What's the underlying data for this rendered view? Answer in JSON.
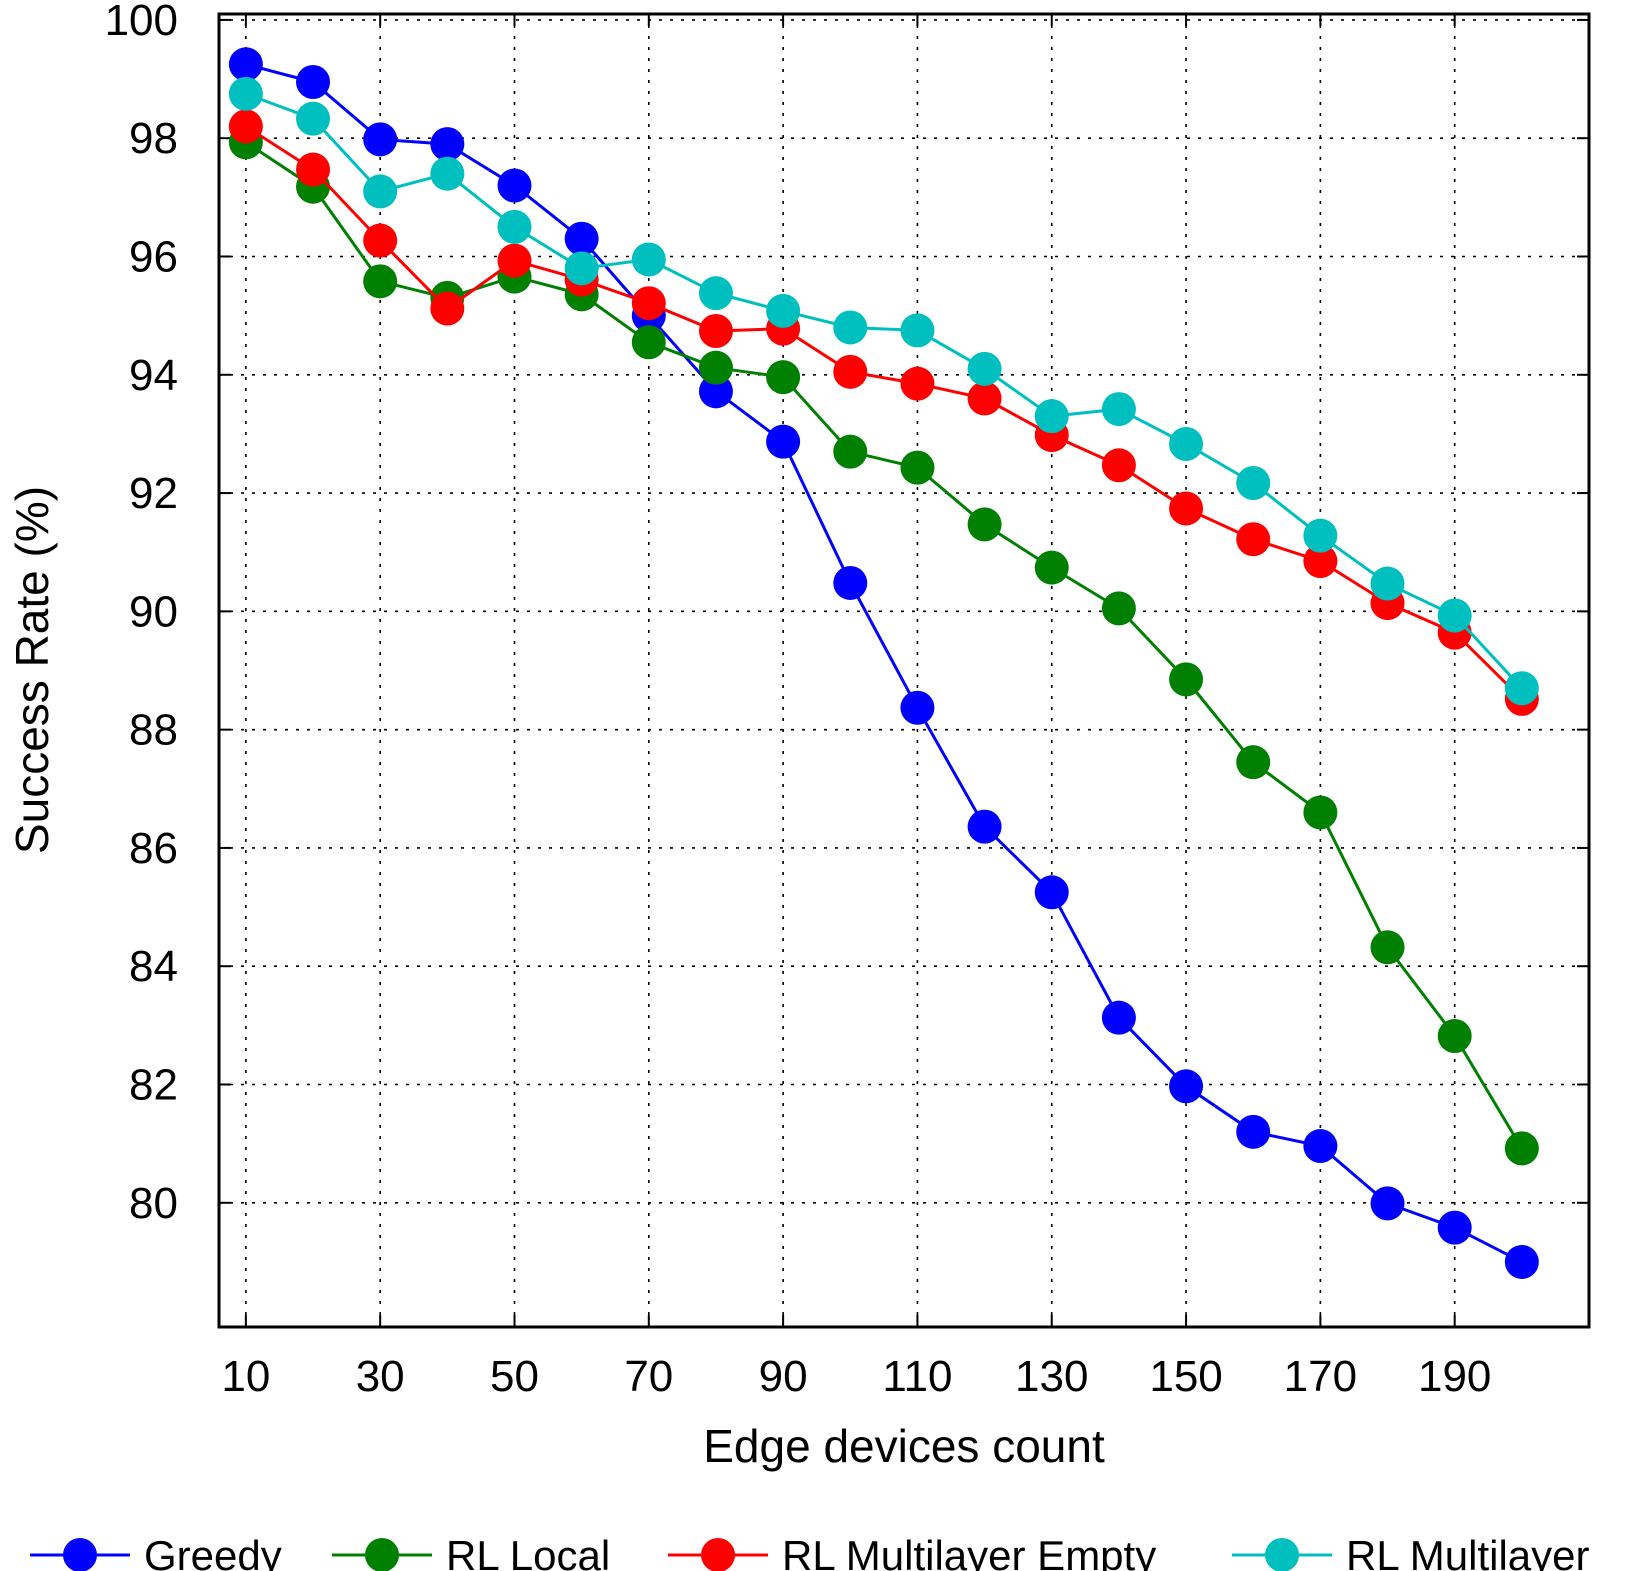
{
  "chart_data": {
    "type": "line",
    "title": "",
    "xlabel": "Edge devices count",
    "ylabel": "Success Rate (%)",
    "x": [
      10,
      20,
      30,
      40,
      50,
      60,
      70,
      80,
      90,
      100,
      110,
      120,
      130,
      140,
      150,
      160,
      170,
      180,
      190,
      200
    ],
    "xticks": [
      10,
      30,
      50,
      70,
      90,
      110,
      130,
      150,
      170,
      190
    ],
    "yticks": [
      80,
      82,
      84,
      86,
      88,
      90,
      92,
      94,
      96,
      98,
      100
    ],
    "xlim": [
      6,
      210
    ],
    "ylim": [
      77.9,
      100.1
    ],
    "grid": true,
    "legend_position": "bottom",
    "series": [
      {
        "name": "Greedy",
        "color": "#0000ff",
        "values": [
          99.25,
          98.95,
          97.98,
          97.9,
          97.2,
          96.3,
          95.0,
          93.72,
          92.87,
          90.48,
          88.37,
          86.36,
          85.25,
          83.13,
          81.97,
          81.2,
          80.96,
          79.99,
          79.58,
          79.0
        ]
      },
      {
        "name": "RL Local",
        "color": "#008000",
        "values": [
          97.93,
          97.18,
          95.58,
          95.3,
          95.66,
          95.36,
          94.55,
          94.12,
          93.96,
          92.7,
          92.43,
          91.47,
          90.74,
          90.05,
          88.85,
          87.45,
          86.6,
          84.32,
          82.82,
          80.92
        ]
      },
      {
        "name": "RL Multilayer Empty",
        "color": "#ff0000",
        "values": [
          98.2,
          97.47,
          96.27,
          95.12,
          95.93,
          95.61,
          95.21,
          94.74,
          94.78,
          94.05,
          93.85,
          93.6,
          92.98,
          92.47,
          91.74,
          91.22,
          90.85,
          90.14,
          89.64,
          88.52
        ]
      },
      {
        "name": "RL Multilayer",
        "color": "#00bfbf",
        "values": [
          98.75,
          98.33,
          97.1,
          97.4,
          96.5,
          95.8,
          95.95,
          95.38,
          95.08,
          94.8,
          94.75,
          94.1,
          93.3,
          93.42,
          92.83,
          92.17,
          91.28,
          90.47,
          89.93,
          88.7
        ]
      }
    ]
  }
}
